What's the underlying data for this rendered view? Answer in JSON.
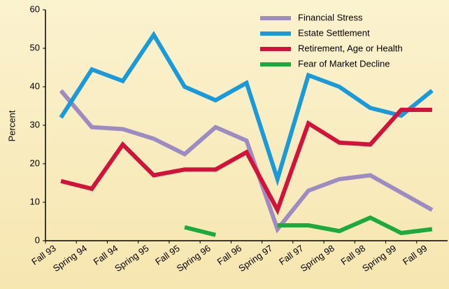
{
  "chart_data": {
    "type": "line",
    "categories": [
      "Fall 93",
      "Spring 94",
      "Fall 94",
      "Spring 95",
      "Fall 95",
      "Spring 96",
      "Fall 96",
      "Spring 97",
      "Fall 97",
      "Spring 98",
      "Fall 98",
      "Spring 99",
      "Fall 99"
    ],
    "series": [
      {
        "name": "Financial Stress",
        "color": "#9d8cc2",
        "values": [
          39,
          29.5,
          29,
          26.5,
          22.5,
          29.5,
          26,
          3,
          13,
          16,
          17,
          12.5,
          8
        ]
      },
      {
        "name": "Estate Settlement",
        "color": "#1a9ad8",
        "values": [
          32,
          44.5,
          41.5,
          53.5,
          40,
          36.5,
          41,
          16,
          43,
          40,
          34.5,
          32.5,
          39
        ]
      },
      {
        "name": "Retirement, Age or Health",
        "color": "#d3123c",
        "values": [
          15.5,
          13.5,
          25,
          17,
          18.5,
          18.5,
          23,
          8,
          30.5,
          25.5,
          25,
          34,
          34
        ]
      },
      {
        "name": "Fear of Market Decline",
        "color": "#1caa3c",
        "values": [
          null,
          null,
          null,
          null,
          3.5,
          1.5,
          null,
          4,
          4,
          2.5,
          6,
          2,
          3
        ]
      }
    ],
    "y_label": "Percent",
    "ylim": [
      0,
      60
    ],
    "yticks": [
      0,
      10,
      20,
      30,
      40,
      50,
      60
    ],
    "legend": "upper right"
  }
}
